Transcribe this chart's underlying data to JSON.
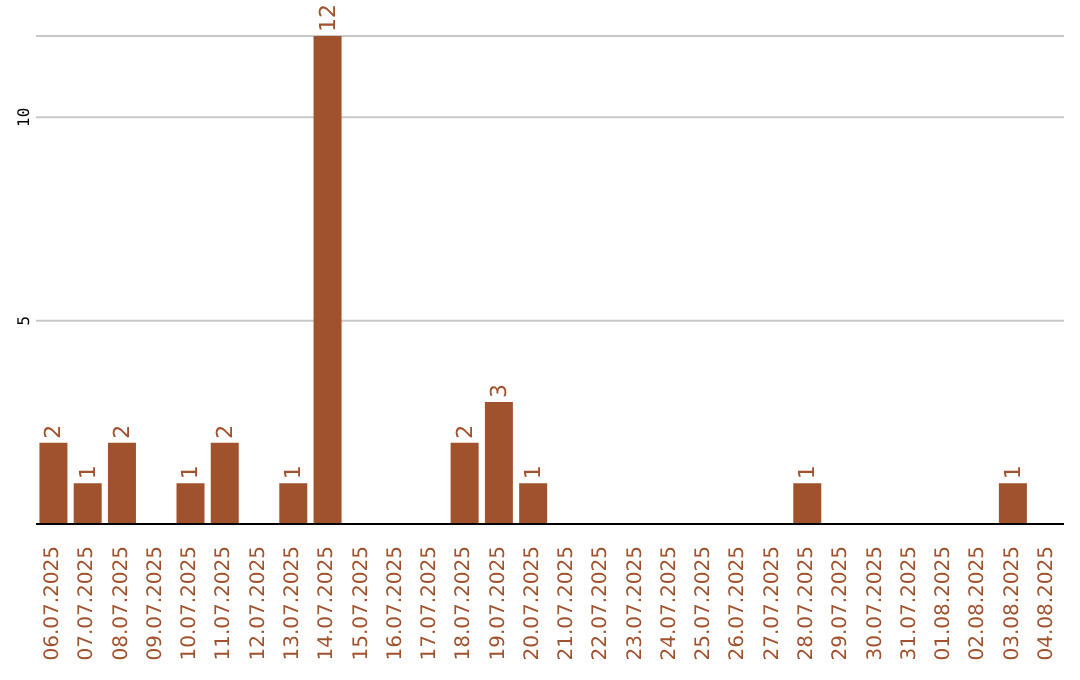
{
  "chart_data": {
    "type": "bar",
    "categories": [
      "06.07.2025",
      "07.07.2025",
      "08.07.2025",
      "09.07.2025",
      "10.07.2025",
      "11.07.2025",
      "12.07.2025",
      "13.07.2025",
      "14.07.2025",
      "15.07.2025",
      "16.07.2025",
      "17.07.2025",
      "18.07.2025",
      "19.07.2025",
      "20.07.2025",
      "21.07.2025",
      "22.07.2025",
      "23.07.2025",
      "24.07.2025",
      "25.07.2025",
      "26.07.2025",
      "27.07.2025",
      "28.07.2025",
      "29.07.2025",
      "30.07.2025",
      "31.07.2025",
      "01.08.2025",
      "02.08.2025",
      "03.08.2025",
      "04.08.2025"
    ],
    "values": [
      2,
      1,
      2,
      0,
      1,
      2,
      0,
      1,
      12,
      0,
      0,
      0,
      2,
      3,
      1,
      0,
      0,
      0,
      0,
      0,
      0,
      0,
      1,
      0,
      0,
      0,
      0,
      0,
      1,
      0
    ],
    "value_labels": [
      "2",
      "1",
      "2",
      null,
      "1",
      "2",
      null,
      "1",
      "12",
      null,
      null,
      null,
      "2",
      "3",
      "1",
      null,
      null,
      null,
      null,
      null,
      null,
      null,
      "1",
      null,
      null,
      null,
      null,
      null,
      "1",
      null
    ],
    "color": "#a0522d",
    "ylim": [
      0,
      12
    ],
    "yticks": [
      5,
      10
    ],
    "grid": "y"
  }
}
